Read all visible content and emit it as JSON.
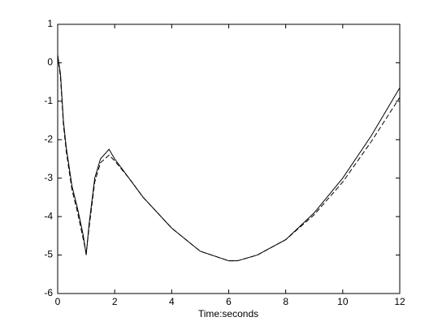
{
  "chart_data": {
    "type": "line",
    "x_label": "Time:seconds",
    "x": [
      0,
      0.1,
      0.2,
      0.3,
      0.5,
      0.7,
      0.9,
      1.0,
      1.1,
      1.3,
      1.5,
      1.8,
      2.0,
      2.5,
      3,
      4,
      5,
      6,
      6.3,
      7,
      8,
      9,
      10,
      11,
      12
    ],
    "series": [
      {
        "color": "#000000",
        "linestyle": "solid",
        "values": [
          0.2,
          -0.3,
          -1.5,
          -2.2,
          -3.2,
          -3.8,
          -4.5,
          -5.0,
          -4.2,
          -3.0,
          -2.5,
          -2.25,
          -2.5,
          -3.0,
          -3.5,
          -4.3,
          -4.9,
          -5.15,
          -5.15,
          -5.0,
          -4.6,
          -3.9,
          -3.0,
          -1.9,
          -0.65
        ]
      },
      {
        "color": "#000000",
        "linestyle": "dashed",
        "values": [
          0.2,
          -0.4,
          -1.6,
          -2.3,
          -3.3,
          -3.9,
          -4.6,
          -4.95,
          -4.3,
          -3.1,
          -2.6,
          -2.4,
          -2.55,
          -3.0,
          -3.5,
          -4.3,
          -4.9,
          -5.15,
          -5.15,
          -5.0,
          -4.6,
          -3.95,
          -3.1,
          -2.05,
          -0.9
        ]
      }
    ],
    "xlim": [
      0,
      12
    ],
    "xticks": [
      0,
      2,
      4,
      6,
      8,
      10,
      12
    ],
    "ylim": [
      -6,
      1
    ],
    "yticks": [
      -6,
      -5,
      -4,
      -3,
      -2,
      -1,
      0,
      1
    ]
  }
}
